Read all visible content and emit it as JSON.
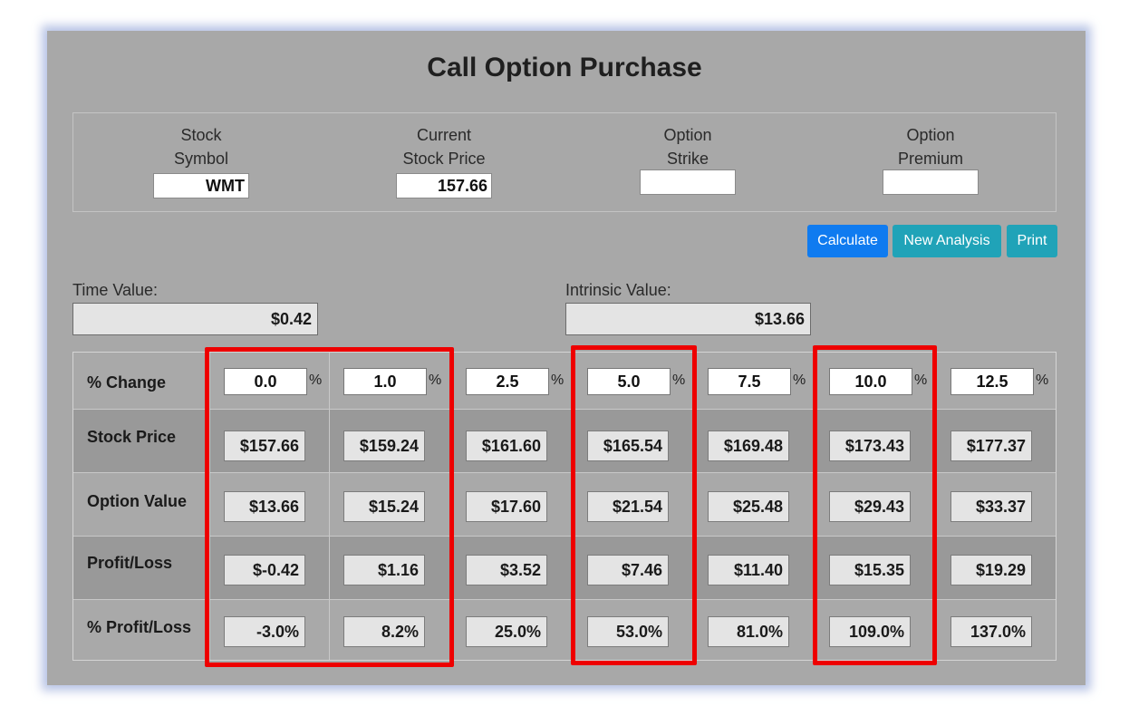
{
  "title": "Call Option Purchase",
  "fields": [
    {
      "label_line1": "Stock",
      "label_line2": "Symbol",
      "value": "WMT"
    },
    {
      "label_line1": "Current",
      "label_line2": "Stock Price",
      "value": "157.66"
    },
    {
      "label_line1": "Option",
      "label_line2": "Strike",
      "value": ""
    },
    {
      "label_line1": "Option",
      "label_line2": "Premium",
      "value": ""
    }
  ],
  "buttons": {
    "calculate": "Calculate",
    "new_analysis": "New Analysis",
    "print": "Print"
  },
  "time_value": {
    "label": "Time Value:",
    "value": "$0.42"
  },
  "intrinsic_value": {
    "label": "Intrinsic Value:",
    "value": "$13.66"
  },
  "table": {
    "row_labels": [
      "% Change",
      "Stock Price",
      "Option Value",
      "Profit/Loss",
      "% Profit/Loss"
    ],
    "percent_symbol": "%",
    "columns": [
      {
        "pct": "0.0",
        "stock": "$157.66",
        "option": "$13.66",
        "pl": "$-0.42",
        "pct_pl": "-3.0%"
      },
      {
        "pct": "1.0",
        "stock": "$159.24",
        "option": "$15.24",
        "pl": "$1.16",
        "pct_pl": "8.2%"
      },
      {
        "pct": "2.5",
        "stock": "$161.60",
        "option": "$17.60",
        "pl": "$3.52",
        "pct_pl": "25.0%"
      },
      {
        "pct": "5.0",
        "stock": "$165.54",
        "option": "$21.54",
        "pl": "$7.46",
        "pct_pl": "53.0%"
      },
      {
        "pct": "7.5",
        "stock": "$169.48",
        "option": "$25.48",
        "pl": "$11.40",
        "pct_pl": "81.0%"
      },
      {
        "pct": "10.0",
        "stock": "$173.43",
        "option": "$29.43",
        "pl": "$15.35",
        "pct_pl": "109.0%"
      },
      {
        "pct": "12.5",
        "stock": "$177.37",
        "option": "$33.37",
        "pl": "$19.29",
        "pct_pl": "137.0%"
      }
    ]
  },
  "highlight_color": "#ee0000"
}
